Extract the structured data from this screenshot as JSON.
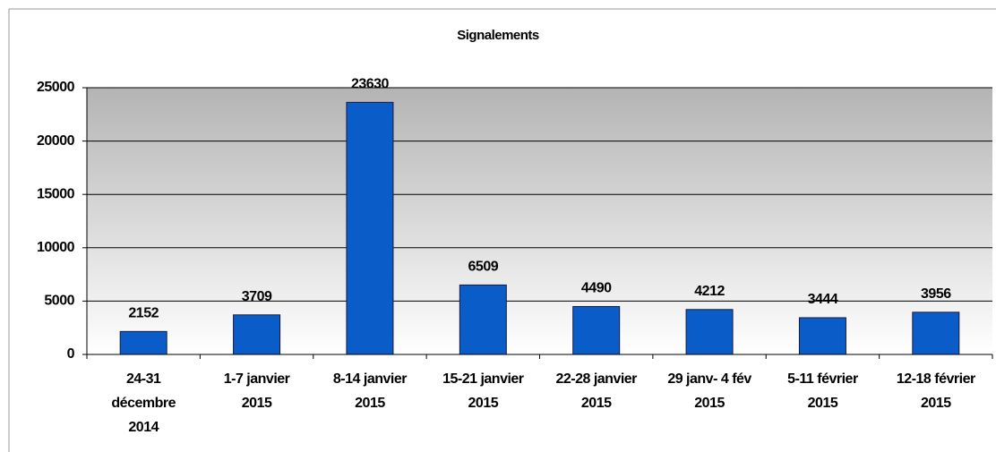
{
  "chart_data": {
    "type": "bar",
    "title": "Signalements",
    "categories": [
      [
        "24-31",
        "décembre",
        "2014"
      ],
      [
        "1-7 janvier",
        "2015"
      ],
      [
        "8-14 janvier",
        "2015"
      ],
      [
        "15-21 janvier",
        "2015"
      ],
      [
        "22-28 janvier",
        "2015"
      ],
      [
        "29 janv- 4 fév",
        "2015"
      ],
      [
        "5-11 février",
        "2015"
      ],
      [
        "12-18 février",
        "2015"
      ]
    ],
    "values": [
      2152,
      3709,
      23630,
      6509,
      4490,
      4212,
      3444,
      3956
    ],
    "color": "#0a5cc8",
    "ylim": [
      0,
      25000
    ],
    "yticks": [
      0,
      5000,
      10000,
      15000,
      20000,
      25000
    ],
    "grid": true
  }
}
